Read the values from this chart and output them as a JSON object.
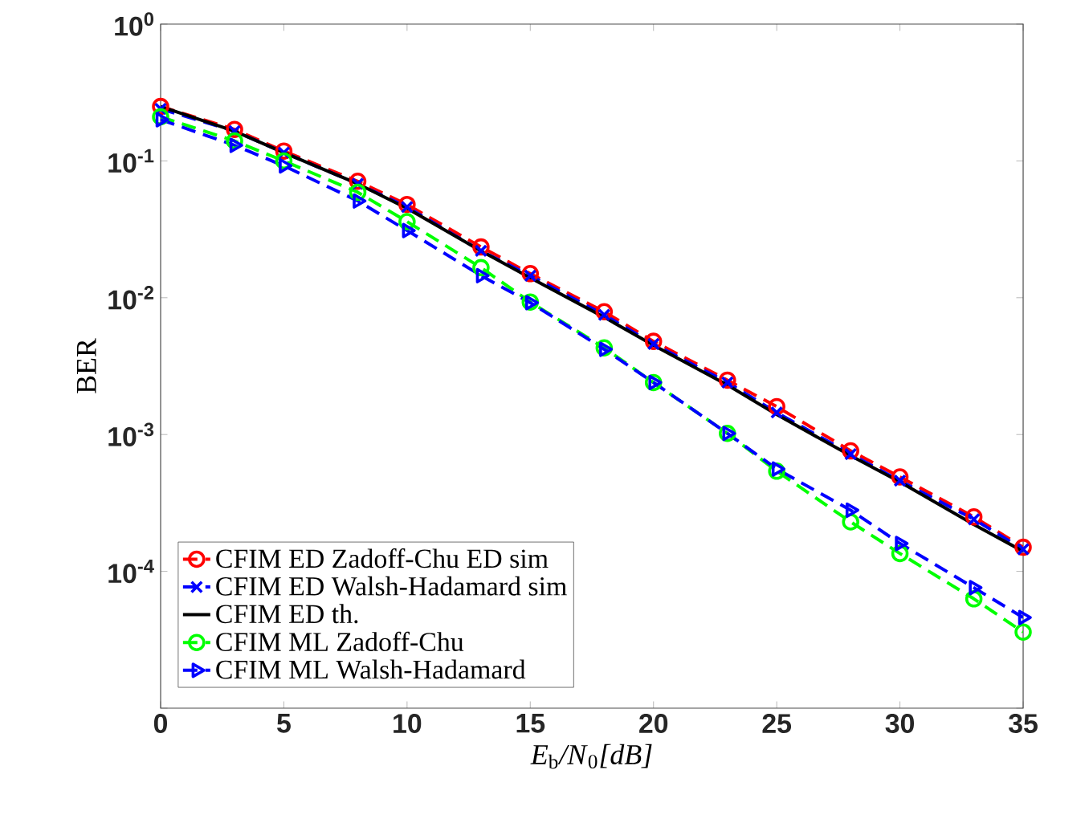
{
  "chart_data": {
    "type": "line",
    "xlabel": "*E*$_{b}$*/N*$_{0}$*[dB]*",
    "ylabel": "BER",
    "x": [
      0,
      3,
      5,
      8,
      10,
      13,
      15,
      18,
      20,
      23,
      25,
      28,
      30,
      33,
      35
    ],
    "xlim": [
      0,
      35
    ],
    "xticks": [
      0,
      5,
      10,
      15,
      20,
      25,
      30,
      35
    ],
    "ylim": [
      1e-05,
      1
    ],
    "log": "y",
    "yticks": [
      {
        "value": 1,
        "label": "10$^{0}$"
      },
      {
        "value": 0.1,
        "label": "10$^{-1}$"
      },
      {
        "value": 0.01,
        "label": "10$^{-2}$"
      },
      {
        "value": 0.001,
        "label": "10$^{-3}$"
      },
      {
        "value": 0.0001,
        "label": "10$^{-4}$"
      },
      {
        "value": 1e-05,
        "label": null
      }
    ],
    "grid": false,
    "legend": "bottom left",
    "series": [
      {
        "name": "CFIM ED Zadoff-Chu ED sim",
        "color": "#ff0000",
        "marker": "circle",
        "line_style": "dashed",
        "values": [
          0.25,
          0.17,
          0.118,
          0.071,
          0.048,
          0.0235,
          0.015,
          0.0079,
          0.0048,
          0.0025,
          0.0016,
          0.00076,
          0.00049,
          0.00025,
          0.00015
        ]
      },
      {
        "name": "CFIM ED Walsh-Hadamard sim",
        "color": "#0000ff",
        "marker": "cross",
        "line_style": "dashed",
        "values": [
          0.24,
          0.165,
          0.115,
          0.068,
          0.046,
          0.022,
          0.0145,
          0.0075,
          0.0046,
          0.0024,
          0.00145,
          0.00072,
          0.00046,
          0.00024,
          0.000145
        ]
      },
      {
        "name": "CFIM ED th.",
        "color": "#000000",
        "marker": "none",
        "line_style": "solid",
        "values": [
          0.25,
          0.165,
          0.115,
          0.068,
          0.045,
          0.022,
          0.014,
          0.0072,
          0.0045,
          0.0023,
          0.0014,
          0.0007,
          0.00045,
          0.00022,
          0.00014
        ]
      },
      {
        "name": "CFIM ML Zadoff-Chu",
        "color": "#00ff00",
        "marker": "circle",
        "line_style": "dashed",
        "values": [
          0.21,
          0.14,
          0.1,
          0.059,
          0.036,
          0.0166,
          0.0093,
          0.0043,
          0.0024,
          0.00102,
          0.00054,
          0.00023,
          0.000135,
          6.3e-05,
          3.6e-05
        ]
      },
      {
        "name": "CFIM ML Walsh-Hadamard",
        "color": "#0000ff",
        "marker": "triangle",
        "line_style": "dashed",
        "values": [
          0.2,
          0.13,
          0.092,
          0.051,
          0.031,
          0.0145,
          0.0092,
          0.0042,
          0.0024,
          0.00102,
          0.00056,
          0.00028,
          0.00016,
          7.6e-05,
          4.6e-05
        ]
      }
    ]
  }
}
